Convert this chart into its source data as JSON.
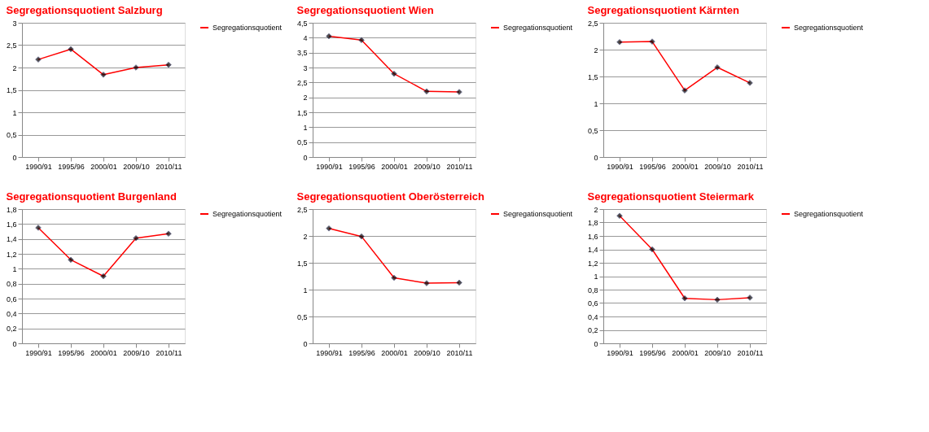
{
  "chart_data": [
    {
      "type": "line",
      "title": "Segregationsquotient Salzburg",
      "categories": [
        "1990/91",
        "1995/96",
        "2000/01",
        "2009/10",
        "2010/11"
      ],
      "series": [
        {
          "name": "Segregationsquotient",
          "color": "#ff0000",
          "values": [
            2.18,
            2.41,
            1.84,
            2.0,
            2.06
          ]
        }
      ],
      "ylim": [
        0,
        3
      ],
      "yticks": [
        0,
        {
          "value": 0.5,
          "label": "0,5"
        },
        1,
        {
          "value": 1.5,
          "label": "1,5"
        },
        2,
        {
          "value": 2.5,
          "label": "2,5"
        },
        3
      ],
      "grid": "y",
      "legend": "right",
      "marker": "diamond",
      "line_style": "solid"
    },
    {
      "type": "line",
      "title": "Segregationsquotient Wien",
      "categories": [
        "1990/91",
        "1995/96",
        "2000/01",
        "2009/10",
        "2010/11"
      ],
      "series": [
        {
          "name": "Segregationsquotient",
          "color": "#ff0000",
          "values": [
            4.05,
            3.92,
            2.79,
            2.2,
            2.18
          ]
        }
      ],
      "ylim": [
        0,
        4.5
      ],
      "yticks": [
        0,
        {
          "value": 0.5,
          "label": "0,5"
        },
        1,
        {
          "value": 1.5,
          "label": "1,5"
        },
        2,
        {
          "value": 2.5,
          "label": "2,5"
        },
        3,
        {
          "value": 3.5,
          "label": "3,5"
        },
        4,
        {
          "value": 4.5,
          "label": "4,5"
        }
      ],
      "grid": "y",
      "legend": "right",
      "marker": "diamond",
      "line_style": "solid"
    },
    {
      "type": "line",
      "title": "Segregationsquotient Kärnten",
      "categories": [
        "1990/91",
        "1995/96",
        "2000/01",
        "2009/10",
        "2010/11"
      ],
      "series": [
        {
          "name": "Segregationsquotient",
          "color": "#ff0000",
          "values": [
            2.14,
            2.15,
            1.24,
            1.67,
            1.38
          ]
        }
      ],
      "ylim": [
        0,
        2.5
      ],
      "yticks": [
        0,
        {
          "value": 0.5,
          "label": "0,5"
        },
        1,
        {
          "value": 1.5,
          "label": "1,5"
        },
        2,
        {
          "value": 2.5,
          "label": "2,5"
        }
      ],
      "grid": "y",
      "legend": "right",
      "marker": "diamond",
      "line_style": "solid"
    },
    {
      "type": "line",
      "title": "Segregationsquotient Burgenland",
      "categories": [
        "1990/91",
        "1995/96",
        "2000/01",
        "2009/10",
        "2010/11"
      ],
      "series": [
        {
          "name": "Segregationsquotient",
          "color": "#ff0000",
          "values": [
            1.55,
            1.12,
            0.9,
            1.41,
            1.47
          ]
        }
      ],
      "ylim": [
        0,
        1.8
      ],
      "yticks": [
        0,
        {
          "value": 0.2,
          "label": "0,2"
        },
        {
          "value": 0.4,
          "label": "0,4"
        },
        {
          "value": 0.6,
          "label": "0,6"
        },
        {
          "value": 0.8,
          "label": "0,8"
        },
        1,
        {
          "value": 1.2,
          "label": "1,2"
        },
        {
          "value": 1.4,
          "label": "1,4"
        },
        {
          "value": 1.6,
          "label": "1,6"
        },
        {
          "value": 1.8,
          "label": "1,8"
        }
      ],
      "grid": "y",
      "legend": "right",
      "marker": "diamond",
      "line_style": "solid"
    },
    {
      "type": "line",
      "title": "Segregationsquotient Oberösterreich",
      "categories": [
        "1990/91",
        "1995/96",
        "2000/01",
        "2009/10",
        "2010/11"
      ],
      "series": [
        {
          "name": "Segregationsquotient",
          "color": "#ff0000",
          "values": [
            2.14,
            1.99,
            1.22,
            1.12,
            1.13
          ]
        }
      ],
      "ylim": [
        0,
        2.5
      ],
      "yticks": [
        0,
        {
          "value": 0.5,
          "label": "0,5"
        },
        1,
        {
          "value": 1.5,
          "label": "1,5"
        },
        2,
        {
          "value": 2.5,
          "label": "2,5"
        }
      ],
      "grid": "y",
      "legend": "right",
      "marker": "diamond",
      "line_style": "solid"
    },
    {
      "type": "line",
      "title": "Segregationsquotient Steiermark",
      "categories": [
        "1990/91",
        "1995/96",
        "2000/01",
        "2009/10",
        "2010/11"
      ],
      "series": [
        {
          "name": "Segregationsquotient",
          "color": "#ff0000",
          "values": [
            1.9,
            1.4,
            0.67,
            0.65,
            0.68
          ]
        }
      ],
      "ylim": [
        0,
        2
      ],
      "yticks": [
        0,
        {
          "value": 0.2,
          "label": "0,2"
        },
        {
          "value": 0.4,
          "label": "0,4"
        },
        {
          "value": 0.6,
          "label": "0,6"
        },
        {
          "value": 0.8,
          "label": "0,8"
        },
        1,
        {
          "value": 1.2,
          "label": "1,2"
        },
        {
          "value": 1.4,
          "label": "1,4"
        },
        {
          "value": 1.6,
          "label": "1,6"
        },
        {
          "value": 1.8,
          "label": "1,8"
        },
        2
      ],
      "grid": "y",
      "legend": "right",
      "marker": "diamond",
      "line_style": "solid"
    }
  ]
}
